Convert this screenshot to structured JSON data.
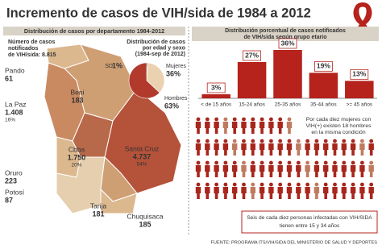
{
  "title": "Incremento de casos de VIH/sida de 1984 a 2012",
  "departments_panel": {
    "header": "Distribución de casos por departamento 1984-2012",
    "total_label": [
      "Número de casos",
      "notificados",
      "de VIH/sida: 8.815"
    ],
    "departments": [
      {
        "name": "Pando",
        "cases": "61"
      },
      {
        "name": "La Paz",
        "cases": "1.408",
        "share": "16%"
      },
      {
        "name": "Beni",
        "cases": "183"
      },
      {
        "name": "Cbba",
        "cases": "1.750",
        "share": "20%"
      },
      {
        "name": "Santa Cruz",
        "cases": "4.737",
        "share": "54%"
      },
      {
        "name": "Oruro",
        "cases": "223"
      },
      {
        "name": "Potosí",
        "cases": "87"
      },
      {
        "name": "Tarija",
        "cases": "181"
      },
      {
        "name": "Chuquisaca",
        "cases": "185"
      }
    ]
  },
  "chart_data": [
    {
      "type": "pie",
      "title": [
        "Distribución de casos",
        "por edad y sexo",
        "(1984-sep de 2012)"
      ],
      "categories": [
        "SD",
        "Mujeres",
        "Hombres"
      ],
      "values": [
        1,
        36,
        63
      ],
      "value_labels": [
        "1%",
        "36%",
        "63%"
      ],
      "colors": [
        "#4a4a4a",
        "#ead2b0",
        "#b13a2c"
      ]
    },
    {
      "type": "bar",
      "title": [
        "Distribución porcentual de casos notificados",
        "de VIH/sida según grupo etario"
      ],
      "categories": [
        "< de 15 años",
        "15-24 años",
        "25-35 años",
        "35-44 años",
        ">= 45 años"
      ],
      "values": [
        3,
        27,
        36,
        19,
        13
      ],
      "value_labels": [
        "3%",
        "27%",
        "36%",
        "19%",
        "13%"
      ],
      "color": "#b5231c"
    }
  ],
  "note": [
    "Por cada diez mujeres con",
    "VIH(+) existen 18 hombres",
    "en la misma condición"
  ],
  "conclusion": [
    "Seis de cada diez personas infectadas con VIH/SIDA",
    "tienen entre 15 y 34 años"
  ],
  "source": "FUENTE: PROGRAMA ITS/VIH/SIDA DEL MINISTERIO DE SALUD Y DEPORTES"
}
